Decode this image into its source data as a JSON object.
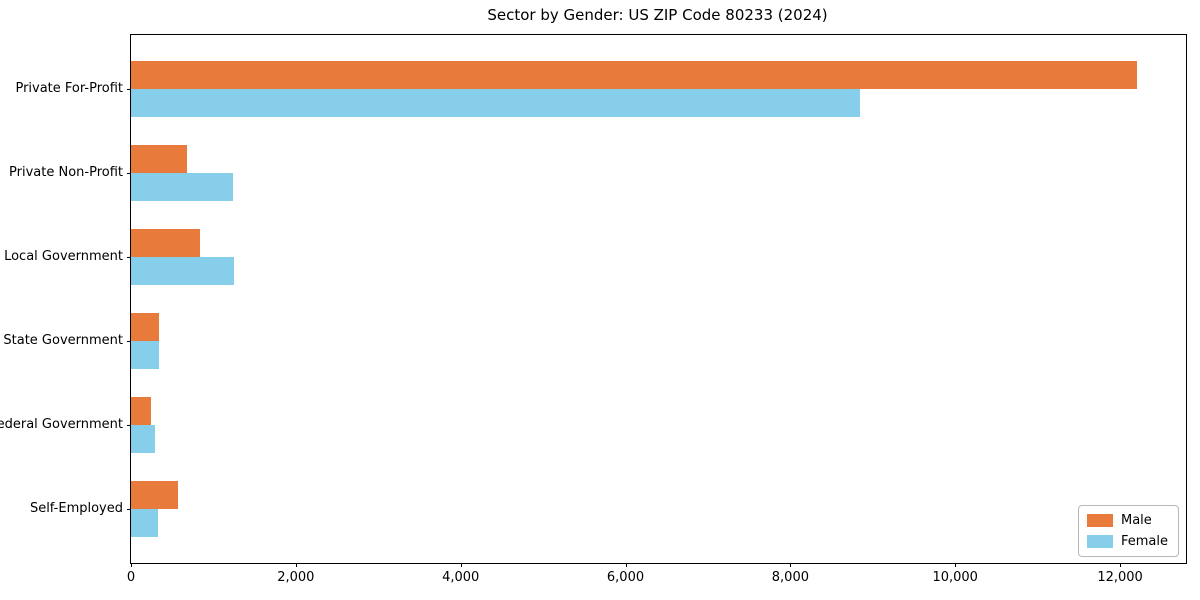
{
  "title": "Sector by Gender: US ZIP Code 80233 (2024)",
  "colors": {
    "male": "#e87a3b",
    "female": "#87ceeb",
    "axis": "#000000",
    "background": "#ffffff",
    "legend_border": "#b7b7b7"
  },
  "legend": {
    "position": "lower right",
    "entries": [
      "Male",
      "Female"
    ]
  },
  "chart_data": {
    "type": "bar",
    "orientation": "horizontal",
    "title": "Sector by Gender: US ZIP Code 80233 (2024)",
    "categories": [
      "Private For-Profit",
      "Private Non-Profit",
      "Local Government",
      "State Government",
      "Federal Government",
      "Self-Employed"
    ],
    "series": [
      {
        "name": "Male",
        "color": "#e87a3b",
        "values": [
          12200,
          680,
          840,
          345,
          245,
          565
        ]
      },
      {
        "name": "Female",
        "color": "#87ceeb",
        "values": [
          8840,
          1235,
          1255,
          335,
          285,
          330
        ]
      }
    ],
    "xlabel": "",
    "ylabel": "",
    "xlim": [
      0,
      12800
    ],
    "xticks": [
      0,
      2000,
      4000,
      6000,
      8000,
      10000,
      12000
    ],
    "grid": false,
    "legend_position": "lower right"
  }
}
